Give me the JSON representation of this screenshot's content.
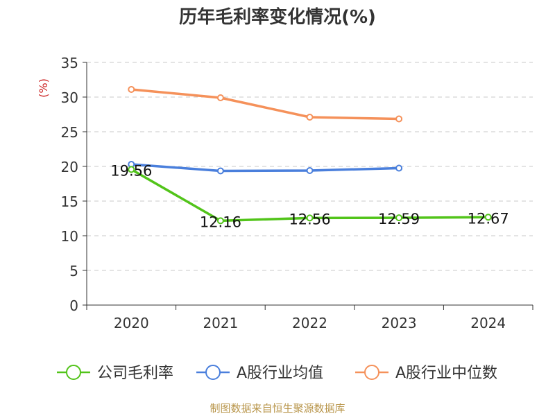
{
  "chart_data": {
    "type": "line",
    "title": "历年毛利率变化情况(%)",
    "ylabel": "(%)",
    "xlabel": "",
    "categories": [
      "2020",
      "2021",
      "2022",
      "2023",
      "2024"
    ],
    "ylim": [
      0,
      35
    ],
    "yticks": [
      0,
      5,
      10,
      15,
      20,
      25,
      30,
      35
    ],
    "grid": "dashed-horizontal",
    "legend_position": "bottom",
    "series": [
      {
        "name": "公司毛利率",
        "color": "#52c41a",
        "values": [
          19.56,
          12.16,
          12.56,
          12.59,
          12.67
        ],
        "labels": [
          "19.56",
          "12.16",
          "12.56",
          "12.59",
          "12.67"
        ]
      },
      {
        "name": "A股行业均值",
        "color": "#4a7fdc",
        "values": [
          20.3,
          19.35,
          19.4,
          19.75,
          null
        ]
      },
      {
        "name": "A股行业中位数",
        "color": "#f5915a",
        "values": [
          31.1,
          29.9,
          27.1,
          26.85,
          null
        ]
      }
    ]
  },
  "source": "制图数据来自恒生聚源数据库"
}
